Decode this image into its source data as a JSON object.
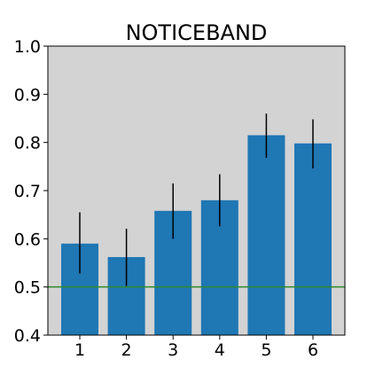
{
  "chart_data": {
    "type": "bar",
    "title": "NOTICEBAND",
    "xlabel": "",
    "ylabel": "",
    "categories": [
      "1",
      "2",
      "3",
      "4",
      "5",
      "6"
    ],
    "values": [
      0.59,
      0.562,
      0.658,
      0.68,
      0.815,
      0.798
    ],
    "error_low": [
      0.528,
      0.502,
      0.6,
      0.626,
      0.768,
      0.746
    ],
    "error_high": [
      0.655,
      0.621,
      0.715,
      0.734,
      0.86,
      0.848
    ],
    "ylim": [
      0.4,
      1.0
    ],
    "yticks": [
      "0.4",
      "0.5",
      "0.6",
      "0.7",
      "0.8",
      "0.9",
      "1.0"
    ],
    "reference_line": {
      "y": 0.5,
      "color": "#2e8b2e"
    },
    "bar_color": "#1f77b4",
    "background_color": "#d3d3d3",
    "grid": false,
    "legend": "none"
  }
}
